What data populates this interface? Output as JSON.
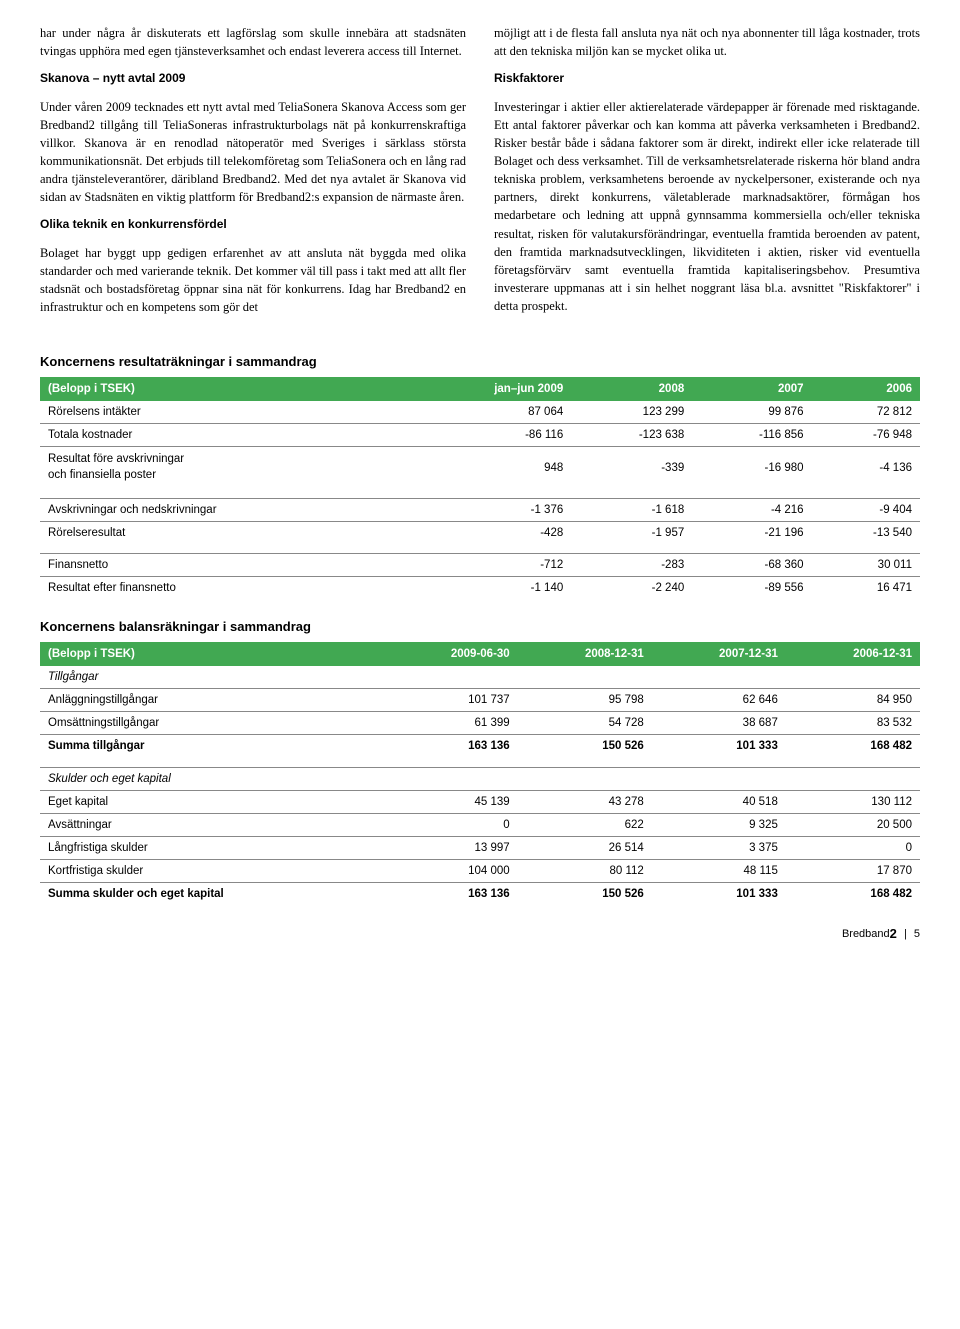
{
  "colors": {
    "header_bg": "#41a852",
    "header_fg": "#ffffff",
    "border": "#888888",
    "text": "#000000",
    "background": "#ffffff"
  },
  "left_col": {
    "p1": "har under några år diskuterats ett lagförslag som skulle innebära att stadsnäten tvingas upphöra med egen tjänsteverksamhet och endast leverera access till Internet.",
    "h1": "Skanova – nytt avtal 2009",
    "p2": "Under våren 2009 tecknades ett nytt avtal med TeliaSonera Skanova Access som ger Bredband2 tillgång till TeliaSoneras infrastrukturbolags nät på konkurrenskraftiga villkor. Skanova är en renodlad nätoperatör med Sveriges i särklass största kommunikationsnät. Det erbjuds till telekomföretag som TeliaSonera och en lång rad andra tjänsteleverantörer, däribland Bredband2. Med det nya avtalet är Skanova vid sidan av Stadsnäten en viktig plattform för Bredband2:s expansion de närmaste åren.",
    "h2": "Olika teknik en konkurrensfördel",
    "p3": "Bolaget har byggt upp gedigen erfarenhet av att ansluta nät byggda med olika standarder och med varierande teknik. Det kommer väl till pass i takt med att allt fler stadsnät och bostadsföretag öppnar sina nät för konkurrens. Idag har Bredband2 en infrastruktur och en kompetens som gör det"
  },
  "right_col": {
    "p1": "möjligt att i de flesta fall ansluta nya nät och nya abonnenter till låga kostnader, trots att den tekniska miljön kan se mycket olika ut.",
    "h1": "Riskfaktorer",
    "p2": "Investeringar i aktier eller aktierelaterade värdepapper är förenade med risktagande. Ett antal faktorer påverkar och kan komma att påverka verksamheten i Bredband2. Risker består både i sådana faktorer som är direkt, indirekt eller icke relaterade till Bolaget och dess verksamhet. Till de verksamhetsrelaterade riskerna hör bland andra tekniska problem, verksamhetens beroende av nyckelpersoner, existerande och nya partners, direkt konkurrens, väletablerade marknadsaktörer, förmågan hos medarbetare och ledning att uppnå gynnsamma kommersiella och/eller tekniska resultat, risken för valutakursförändringar, eventuella framtida beroenden av patent, den framtida marknadsutvecklingen, likviditeten i aktien, risker vid eventuella företagsförvärv samt eventuella framtida kapitaliseringsbehov. Presumtiva investerare uppmanas att i sin helhet noggrant läsa bl.a. avsnittet \"Riskfaktorer\" i detta prospekt."
  },
  "table1": {
    "title": "Koncernens resultaträkningar i sammandrag",
    "columns": [
      "(Belopp i TSEK)",
      "jan–jun 2009",
      "2008",
      "2007",
      "2006"
    ],
    "rows": [
      {
        "label": "Rörelsens intäkter",
        "v": [
          "87 064",
          "123 299",
          "99 876",
          "72 812"
        ]
      },
      {
        "label": "Totala kostnader",
        "v": [
          "-86 116",
          "-123 638",
          "-116 856",
          "-76 948"
        ]
      },
      {
        "label": "Resultat före avskrivningar\noch finansiella poster",
        "v": [
          "948",
          "-339",
          "-16 980",
          "-4 136"
        ],
        "multiline": true
      }
    ],
    "rows2": [
      {
        "label": "Avskrivningar och nedskrivningar",
        "v": [
          "-1 376",
          "-1 618",
          "-4 216",
          "-9 404"
        ]
      },
      {
        "label": "Rörelseresultat",
        "v": [
          "-428",
          "-1 957",
          "-21 196",
          "-13 540"
        ]
      }
    ],
    "rows3": [
      {
        "label": "Finansnetto",
        "v": [
          "-712",
          "-283",
          "-68 360",
          "30 011"
        ]
      },
      {
        "label": "Resultat efter finansnetto",
        "v": [
          "-1 140",
          "-2 240",
          "-89 556",
          "16 471"
        ]
      }
    ]
  },
  "table2": {
    "title": "Koncernens balansräkningar i sammandrag",
    "columns": [
      "(Belopp i TSEK)",
      "2009-06-30",
      "2008-12-31",
      "2007-12-31",
      "2006-12-31"
    ],
    "section1_label": "Tillgångar",
    "rows1": [
      {
        "label": "Anläggningstillgångar",
        "v": [
          "101 737",
          "95 798",
          "62 646",
          "84 950"
        ]
      },
      {
        "label": "Omsättningstillgångar",
        "v": [
          "61 399",
          "54 728",
          "38 687",
          "83 532"
        ]
      },
      {
        "label": "Summa tillgångar",
        "v": [
          "163 136",
          "150 526",
          "101 333",
          "168 482"
        ],
        "bold": true
      }
    ],
    "section2_label": "Skulder och eget kapital",
    "rows2": [
      {
        "label": "Eget kapital",
        "v": [
          "45 139",
          "43 278",
          "40 518",
          "130 112"
        ]
      },
      {
        "label": "Avsättningar",
        "v": [
          "0",
          "622",
          "9 325",
          "20 500"
        ]
      },
      {
        "label": "Långfristiga skulder",
        "v": [
          "13 997",
          "26 514",
          "3 375",
          "0"
        ]
      },
      {
        "label": "Kortfristiga skulder",
        "v": [
          "104 000",
          "80 112",
          "48 115",
          "17 870"
        ]
      },
      {
        "label": "Summa skulder och eget kapital",
        "v": [
          "163 136",
          "150 526",
          "101 333",
          "168 482"
        ],
        "bold": true
      }
    ]
  },
  "footer": {
    "brand": "Bredband",
    "brand2": "2",
    "page": "5"
  }
}
